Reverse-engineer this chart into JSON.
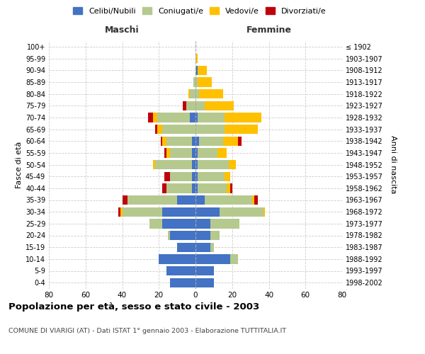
{
  "age_groups": [
    "0-4",
    "5-9",
    "10-14",
    "15-19",
    "20-24",
    "25-29",
    "30-34",
    "35-39",
    "40-44",
    "45-49",
    "50-54",
    "55-59",
    "60-64",
    "65-69",
    "70-74",
    "75-79",
    "80-84",
    "85-89",
    "90-94",
    "95-99",
    "100+"
  ],
  "birth_years": [
    "1998-2002",
    "1993-1997",
    "1988-1992",
    "1983-1987",
    "1978-1982",
    "1973-1977",
    "1968-1972",
    "1963-1967",
    "1958-1962",
    "1953-1957",
    "1948-1952",
    "1943-1947",
    "1938-1942",
    "1933-1937",
    "1928-1932",
    "1923-1927",
    "1918-1922",
    "1913-1917",
    "1908-1912",
    "1903-1907",
    "≤ 1902"
  ],
  "maschi": {
    "celibi": [
      14,
      16,
      20,
      10,
      14,
      18,
      18,
      10,
      2,
      2,
      2,
      2,
      2,
      0,
      3,
      0,
      0,
      0,
      0,
      0,
      0
    ],
    "coniugati": [
      0,
      0,
      0,
      0,
      1,
      7,
      22,
      27,
      14,
      12,
      20,
      12,
      14,
      18,
      18,
      5,
      3,
      1,
      0,
      0,
      0
    ],
    "vedovi": [
      0,
      0,
      0,
      0,
      0,
      0,
      1,
      0,
      0,
      0,
      1,
      2,
      2,
      3,
      2,
      0,
      1,
      0,
      0,
      0,
      0
    ],
    "divorziati": [
      0,
      0,
      0,
      0,
      0,
      0,
      1,
      3,
      2,
      3,
      0,
      1,
      1,
      1,
      3,
      2,
      0,
      0,
      0,
      0,
      0
    ]
  },
  "femmine": {
    "nubili": [
      10,
      10,
      19,
      8,
      8,
      8,
      13,
      5,
      1,
      1,
      1,
      1,
      2,
      0,
      1,
      0,
      0,
      0,
      1,
      0,
      0
    ],
    "coniugate": [
      0,
      0,
      4,
      2,
      5,
      16,
      24,
      26,
      16,
      15,
      17,
      11,
      13,
      16,
      15,
      5,
      2,
      1,
      0,
      0,
      0
    ],
    "vedove": [
      0,
      0,
      0,
      0,
      0,
      0,
      1,
      1,
      2,
      3,
      4,
      5,
      8,
      18,
      20,
      16,
      13,
      8,
      5,
      1,
      0
    ],
    "divorziate": [
      0,
      0,
      0,
      0,
      0,
      0,
      0,
      2,
      1,
      0,
      0,
      0,
      2,
      0,
      0,
      0,
      0,
      0,
      0,
      0,
      0
    ]
  },
  "colors": {
    "celibi_nubili": "#4472c4",
    "coniugati": "#b5c98e",
    "vedovi": "#ffc000",
    "divorziati": "#c0000b"
  },
  "xlim": 80,
  "title": "Popolazione per età, sesso e stato civile - 2003",
  "subtitle": "COMUNE DI VIARIGI (AT) - Dati ISTAT 1° gennaio 2003 - Elaborazione TUTTITALIA.IT",
  "ylabel_left": "Fasce di età",
  "ylabel_right": "Anni di nascita",
  "xlabel_left": "Maschi",
  "xlabel_right": "Femmine",
  "background_color": "#ffffff",
  "grid_color": "#cccccc"
}
